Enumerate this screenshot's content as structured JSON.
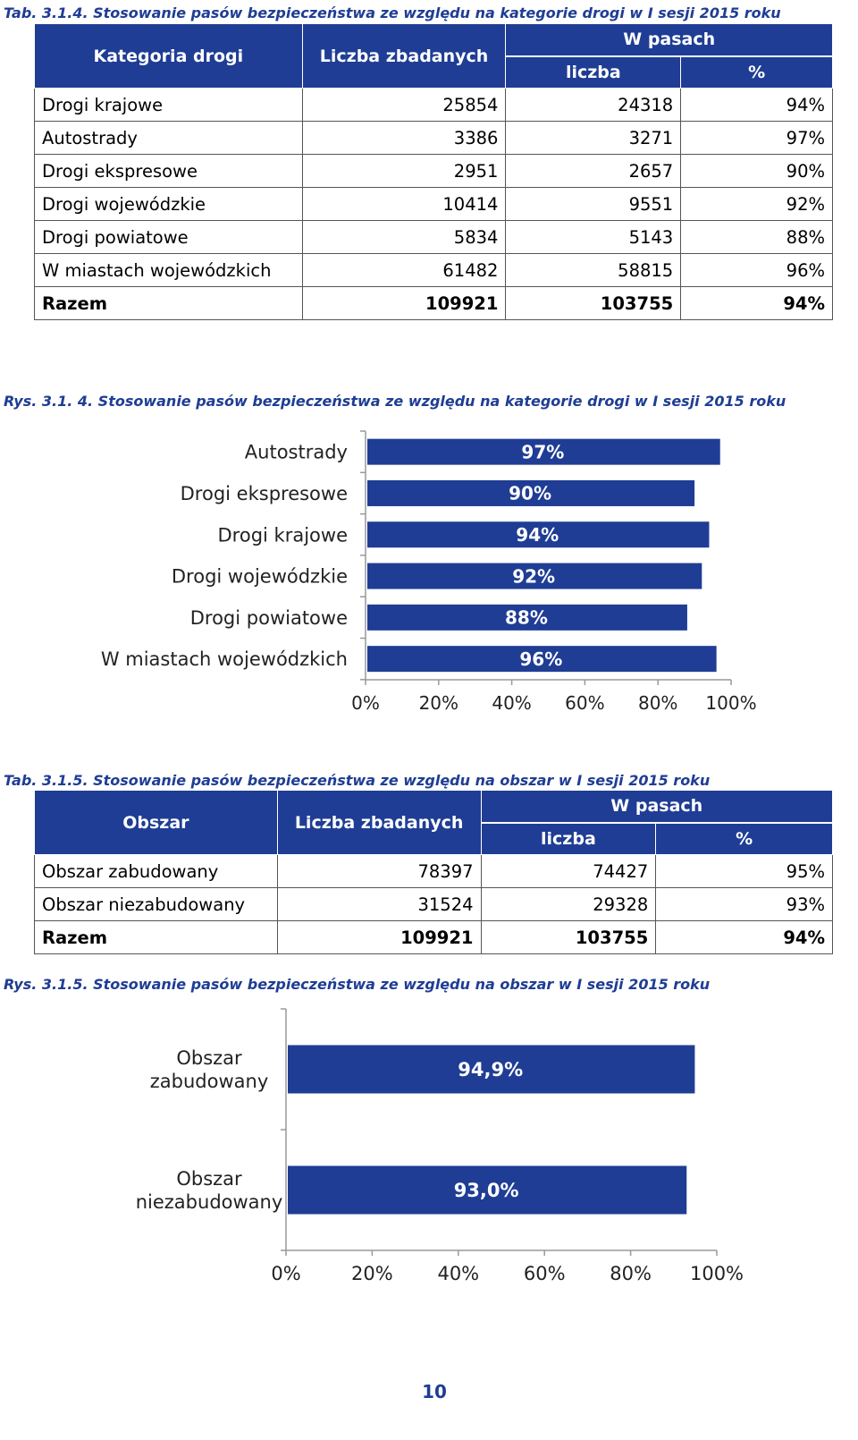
{
  "table1": {
    "caption": "Tab. 3.1.4. Stosowanie pasów bezpieczeństwa ze względu na kategorie drogi w I sesji 2015 roku",
    "headers": {
      "col1": "Kategoria drogi",
      "col2": "Liczba zbadanych",
      "group": "W pasach",
      "col3": "liczba",
      "col4": "%"
    },
    "rows": [
      {
        "name": "Drogi krajowe",
        "count": "25854",
        "belted": "24318",
        "pct": "94%"
      },
      {
        "name": "Autostrady",
        "count": "3386",
        "belted": "3271",
        "pct": "97%"
      },
      {
        "name": "Drogi ekspresowe",
        "count": "2951",
        "belted": "2657",
        "pct": "90%"
      },
      {
        "name": "Drogi wojewódzkie",
        "count": "10414",
        "belted": "9551",
        "pct": "92%"
      },
      {
        "name": "Drogi powiatowe",
        "count": "5834",
        "belted": "5143",
        "pct": "88%"
      },
      {
        "name": "W miastach wojewódzkich",
        "count": "61482",
        "belted": "58815",
        "pct": "96%"
      }
    ],
    "total": {
      "name": "Razem",
      "count": "109921",
      "belted": "103755",
      "pct": "94%"
    }
  },
  "table2": {
    "caption": "Tab. 3.1.5. Stosowanie pasów bezpieczeństwa ze względu na obszar w I sesji 2015 roku",
    "headers": {
      "col1": "Obszar",
      "col2": "Liczba zbadanych",
      "group": "W pasach",
      "col3": "liczba",
      "col4": "%"
    },
    "rows": [
      {
        "name": "Obszar zabudowany",
        "count": "78397",
        "belted": "74427",
        "pct": "95%"
      },
      {
        "name": "Obszar niezabudowany",
        "count": "31524",
        "belted": "29328",
        "pct": "93%"
      }
    ],
    "total": {
      "name": "Razem",
      "count": "109921",
      "belted": "103755",
      "pct": "94%"
    }
  },
  "chart_data": [
    {
      "type": "bar",
      "orientation": "horizontal",
      "title": "Rys. 3.1. 4. Stosowanie pasów bezpieczeństwa ze względu na kategorie drogi w I sesji 2015 roku",
      "categories": [
        "Autostrady",
        "Drogi ekspresowe",
        "Drogi krajowe",
        "Drogi wojewódzkie",
        "Drogi powiatowe",
        "W miastach wojewódzkich"
      ],
      "values": [
        97,
        90,
        94,
        92,
        88,
        96
      ],
      "data_labels": [
        "97%",
        "90%",
        "94%",
        "92%",
        "88%",
        "96%"
      ],
      "xlim": [
        0,
        100
      ],
      "xticks": [
        "0%",
        "20%",
        "40%",
        "60%",
        "80%",
        "100%"
      ],
      "bar_color": "#1f3d94",
      "grid": false
    },
    {
      "type": "bar",
      "orientation": "horizontal",
      "title": "Rys. 3.1.5. Stosowanie pasów bezpieczeństwa ze względu na obszar w I sesji 2015 roku",
      "categories": [
        [
          "Obszar",
          "zabudowany"
        ],
        [
          "Obszar",
          "niezabudowany"
        ]
      ],
      "values": [
        94.9,
        93.0
      ],
      "data_labels": [
        "94,9%",
        "93,0%"
      ],
      "xlim": [
        0,
        100
      ],
      "xticks": [
        "0%",
        "20%",
        "40%",
        "60%",
        "80%",
        "100%"
      ],
      "bar_color": "#1f3d94",
      "grid": false
    }
  ],
  "page_number": "10",
  "colors": {
    "accent": "#1f3d94",
    "caption": "#1f3d94"
  }
}
